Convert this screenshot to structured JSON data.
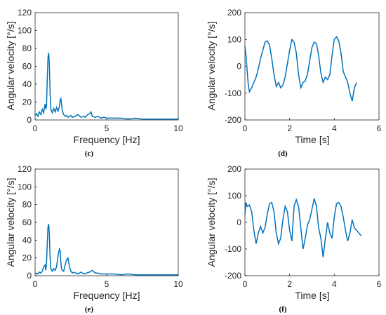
{
  "chart_data": [
    {
      "type": "line",
      "panel_label": "(c)",
      "xlabel": "Frequency [Hz]",
      "ylabel": "Angular velocity [°/s]",
      "xlim": [
        0,
        10
      ],
      "ylim": [
        0,
        120
      ],
      "xticks": [
        0,
        5,
        10
      ],
      "yticks": [
        0,
        20,
        40,
        60,
        80,
        100,
        120
      ],
      "grid": false,
      "series": [
        {
          "color": "#0072BD",
          "x": [
            0,
            0.1,
            0.2,
            0.3,
            0.4,
            0.5,
            0.6,
            0.65,
            0.7,
            0.75,
            0.8,
            0.85,
            0.9,
            0.95,
            1.0,
            1.05,
            1.1,
            1.2,
            1.3,
            1.4,
            1.5,
            1.6,
            1.7,
            1.75,
            1.8,
            1.85,
            1.9,
            2.0,
            2.1,
            2.2,
            2.3,
            2.4,
            2.5,
            2.6,
            2.8,
            3.0,
            3.2,
            3.4,
            3.5,
            3.6,
            3.8,
            3.9,
            4.0,
            4.2,
            4.4,
            4.6,
            4.8,
            5.0,
            5.5,
            6.0,
            6.5,
            7.0,
            7.5,
            8.0,
            8.5,
            9.0,
            9.5,
            10.0
          ],
          "y": [
            5,
            7,
            4,
            9,
            6,
            12,
            8,
            14,
            18,
            12,
            16,
            45,
            70,
            75,
            60,
            30,
            12,
            8,
            13,
            9,
            14,
            10,
            15,
            22,
            24,
            18,
            10,
            6,
            4,
            5,
            3,
            4,
            5,
            3,
            4,
            6,
            3,
            4,
            3,
            5,
            7,
            9,
            4,
            3,
            4,
            2,
            3,
            2,
            2,
            2,
            1,
            2,
            1,
            1,
            1,
            1,
            1,
            1
          ]
        }
      ]
    },
    {
      "type": "line",
      "panel_label": "(d)",
      "xlabel": "Time [s]",
      "ylabel": "Angular velocity [°/s]",
      "xlim": [
        0,
        6
      ],
      "ylim": [
        -200,
        200
      ],
      "xticks": [
        0,
        2,
        4,
        6
      ],
      "yticks": [
        -200,
        -100,
        0,
        100,
        200
      ],
      "grid": false,
      "series": [
        {
          "color": "#0072BD",
          "x": [
            0,
            0.05,
            0.1,
            0.15,
            0.2,
            0.3,
            0.4,
            0.5,
            0.6,
            0.7,
            0.8,
            0.9,
            1.0,
            1.1,
            1.2,
            1.3,
            1.4,
            1.5,
            1.6,
            1.7,
            1.8,
            1.9,
            2.0,
            2.1,
            2.2,
            2.3,
            2.4,
            2.5,
            2.6,
            2.7,
            2.8,
            2.9,
            3.0,
            3.1,
            3.2,
            3.3,
            3.4,
            3.5,
            3.6,
            3.7,
            3.8,
            3.9,
            4.0,
            4.1,
            4.2,
            4.3,
            4.4,
            4.5,
            4.6,
            4.7,
            4.8,
            4.9,
            5.0
          ],
          "y": [
            75,
            40,
            -20,
            -70,
            -95,
            -80,
            -60,
            -40,
            -10,
            30,
            60,
            90,
            95,
            80,
            30,
            -30,
            -75,
            -60,
            -80,
            -70,
            -40,
            10,
            60,
            100,
            90,
            50,
            -30,
            -80,
            -60,
            -55,
            -30,
            20,
            70,
            90,
            85,
            40,
            -25,
            -60,
            -40,
            -50,
            -30,
            40,
            100,
            110,
            95,
            50,
            -20,
            -40,
            -60,
            -100,
            -130,
            -80,
            -60
          ]
        }
      ]
    },
    {
      "type": "line",
      "panel_label": "(e)",
      "xlabel": "Frequency [Hz]",
      "ylabel": "Angular velocity [°/s]",
      "xlim": [
        0,
        10
      ],
      "ylim": [
        0,
        120
      ],
      "xticks": [
        0,
        5,
        10
      ],
      "yticks": [
        0,
        20,
        40,
        60,
        80,
        100,
        120
      ],
      "grid": false,
      "series": [
        {
          "color": "#0072BD",
          "x": [
            0,
            0.1,
            0.2,
            0.3,
            0.4,
            0.5,
            0.6,
            0.7,
            0.75,
            0.8,
            0.85,
            0.9,
            0.95,
            1.0,
            1.05,
            1.1,
            1.2,
            1.3,
            1.4,
            1.5,
            1.6,
            1.7,
            1.75,
            1.8,
            1.85,
            1.9,
            2.0,
            2.1,
            2.2,
            2.3,
            2.4,
            2.5,
            2.6,
            2.7,
            2.8,
            2.9,
            3.0,
            3.2,
            3.4,
            3.6,
            3.8,
            4.0,
            4.2,
            4.4,
            4.6,
            4.8,
            5.0,
            5.5,
            6.0,
            6.5,
            7.0,
            7.5,
            8.0,
            8.5,
            9.0,
            9.5,
            10.0
          ],
          "y": [
            2,
            3,
            2,
            4,
            3,
            5,
            10,
            12,
            6,
            15,
            35,
            55,
            58,
            45,
            20,
            8,
            5,
            8,
            6,
            10,
            22,
            30,
            28,
            15,
            8,
            6,
            5,
            12,
            18,
            20,
            10,
            5,
            3,
            4,
            3,
            3,
            2,
            4,
            2,
            3,
            4,
            6,
            3,
            3,
            2,
            2,
            2,
            2,
            1,
            2,
            1,
            1,
            1,
            1,
            1,
            1,
            1
          ]
        }
      ]
    },
    {
      "type": "line",
      "panel_label": "(f)",
      "xlabel": "Time [s]",
      "ylabel": "Angular velocity [°/s]",
      "xlim": [
        0,
        6
      ],
      "ylim": [
        -200,
        200
      ],
      "xticks": [
        0,
        2,
        4,
        6
      ],
      "yticks": [
        -200,
        -100,
        0,
        100,
        200
      ],
      "grid": false,
      "series": [
        {
          "color": "#0072BD",
          "x": [
            0,
            0.05,
            0.1,
            0.2,
            0.3,
            0.4,
            0.5,
            0.6,
            0.7,
            0.8,
            0.9,
            1.0,
            1.1,
            1.2,
            1.3,
            1.4,
            1.5,
            1.6,
            1.7,
            1.8,
            1.9,
            2.0,
            2.1,
            2.2,
            2.3,
            2.4,
            2.5,
            2.6,
            2.7,
            2.8,
            2.9,
            3.0,
            3.1,
            3.2,
            3.3,
            3.4,
            3.5,
            3.6,
            3.7,
            3.8,
            3.9,
            4.0,
            4.1,
            4.2,
            4.3,
            4.4,
            4.5,
            4.6,
            4.7,
            4.8,
            4.9,
            5.0,
            5.1,
            5.2
          ],
          "y": [
            30,
            75,
            60,
            65,
            40,
            -30,
            -80,
            -40,
            -15,
            -40,
            -20,
            30,
            70,
            75,
            40,
            -40,
            -80,
            -60,
            10,
            60,
            40,
            -30,
            -70,
            60,
            85,
            60,
            -20,
            -100,
            -60,
            -10,
            10,
            50,
            90,
            60,
            -20,
            -60,
            -130,
            -60,
            0,
            -40,
            -60,
            20,
            70,
            75,
            60,
            20,
            -30,
            -70,
            -40,
            10,
            -20,
            -30,
            -40,
            -50
          ]
        }
      ]
    }
  ]
}
